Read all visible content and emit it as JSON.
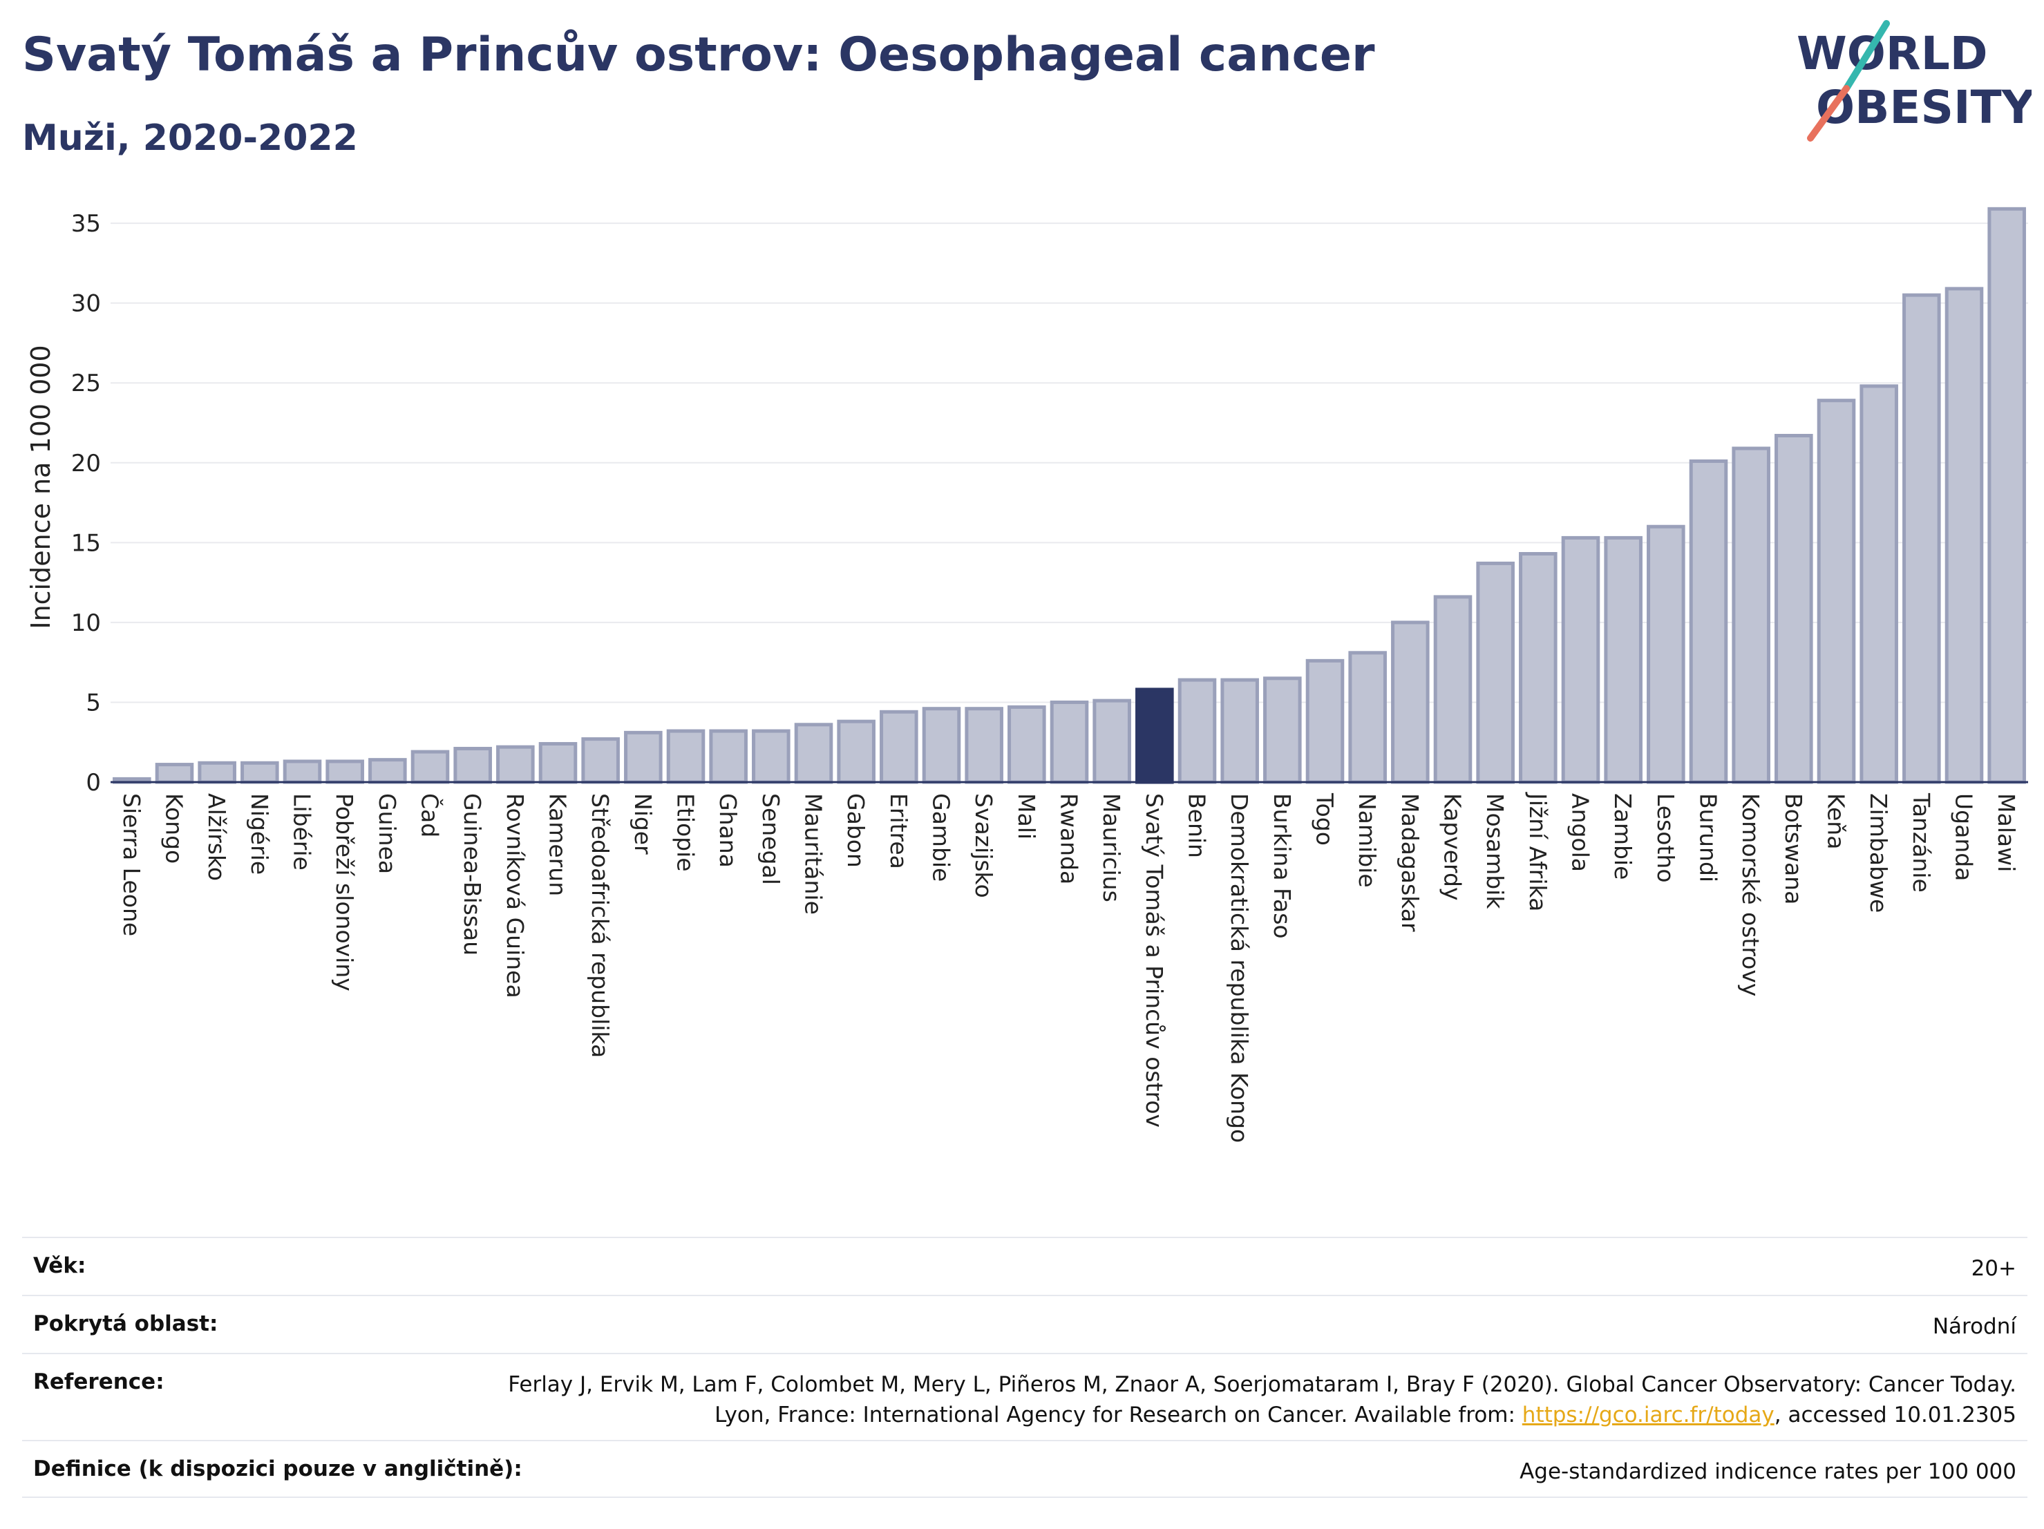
{
  "header": {
    "title": "Svatý Tomáš a Princův ostrov: Oesophageal cancer",
    "subtitle": "Muži, 2020-2022"
  },
  "logo": {
    "line1": "WORLD",
    "line2": "OBESITY"
  },
  "colors": {
    "bar": "#bfc3d3",
    "bar_stroke": "#9aa0ba",
    "highlight": "#2b3664",
    "grid": "#e9eaee"
  },
  "chart_data": {
    "type": "bar",
    "ylabel": "Incidence na 100 000",
    "ylim": [
      0,
      36
    ],
    "yticks": [
      0,
      5,
      10,
      15,
      20,
      25,
      30,
      35
    ],
    "highlight": "Svatý Tomáš a Princův ostrov",
    "categories": [
      "Sierra Leone",
      "Kongo",
      "Alžírsko",
      "Nigérie",
      "Libérie",
      "Pobřeží slonoviny",
      "Guinea",
      "Čad",
      "Guinea-Bissau",
      "Rovníková Guinea",
      "Kamerun",
      "Středoafrická republika",
      "Niger",
      "Etiopie",
      "Ghana",
      "Senegal",
      "Mauritánie",
      "Gabon",
      "Eritrea",
      "Gambie",
      "Svazijsko",
      "Mali",
      "Rwanda",
      "Mauricius",
      "Svatý Tomáš a Princův ostrov",
      "Benin",
      "Demokratická republika Kongo",
      "Burkina Faso",
      "Togo",
      "Namibie",
      "Madagaskar",
      "Kapverdy",
      "Mosambik",
      "Jižní Afrika",
      "Angola",
      "Zambie",
      "Lesotho",
      "Burundi",
      "Komorské ostrovy",
      "Botswana",
      "Keňa",
      "Zimbabwe",
      "Tanzánie",
      "Uganda",
      "Malawi"
    ],
    "values": [
      0.2,
      1.1,
      1.2,
      1.2,
      1.3,
      1.3,
      1.4,
      1.9,
      2.1,
      2.2,
      2.4,
      2.7,
      3.1,
      3.2,
      3.2,
      3.2,
      3.6,
      3.8,
      4.4,
      4.6,
      4.6,
      4.7,
      5.0,
      5.1,
      5.8,
      6.4,
      6.4,
      6.5,
      7.6,
      8.1,
      10.0,
      11.6,
      13.7,
      14.3,
      15.3,
      15.3,
      16.0,
      20.1,
      20.9,
      21.7,
      23.9,
      24.8,
      30.5,
      30.9,
      35.9
    ]
  },
  "info": {
    "rows": [
      {
        "label": "Věk:",
        "value": "20+"
      },
      {
        "label": "Pokrytá oblast:",
        "value": "Národní"
      },
      {
        "label": "Reference:",
        "value_pre": "Ferlay J, Ervik M, Lam F, Colombet M, Mery L, Piñeros M, Znaor A, Soerjomataram I, Bray F (2020). Global Cancer Observatory: Cancer Today. Lyon, France: International Agency for Research on Cancer. Available from: ",
        "link": "https://gco.iarc.fr/today",
        "value_post": ", accessed 10.01.2305"
      },
      {
        "label": "Definice (k dispozici pouze v angličtině):",
        "value": "Age-standardized indicence rates per 100 000"
      }
    ]
  }
}
